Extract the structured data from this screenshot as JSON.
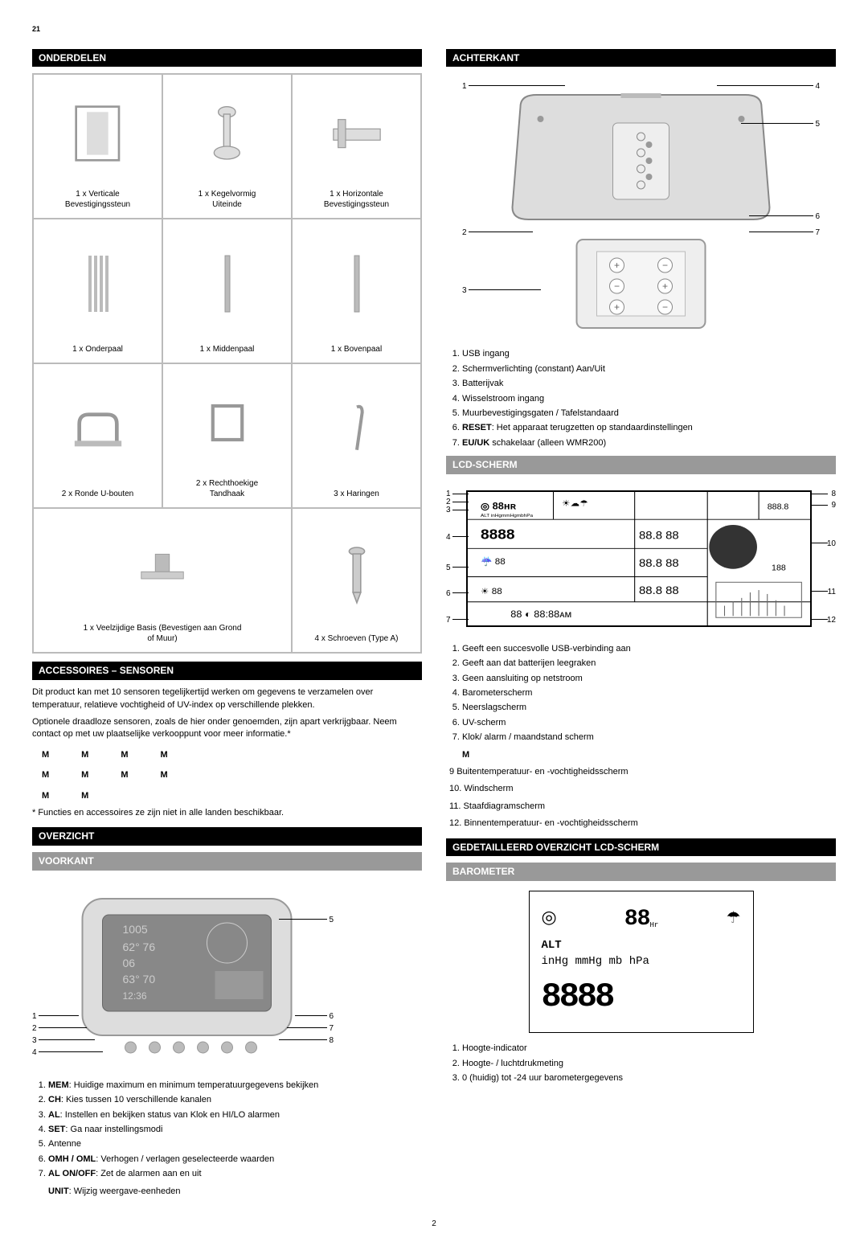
{
  "pageNumTop": "21",
  "pageNumBottom": "2",
  "leftCol": {
    "onderdelenHeader": "ONDERDELEN",
    "parts": [
      {
        "label": "1 x Verticale\nBevestigingssteun"
      },
      {
        "label": "1 x Kegelvormig\nUiteinde"
      },
      {
        "label": "1 x Horizontale\nBevestigingssteun"
      },
      {
        "label": "1 x Onderpaal"
      },
      {
        "label": "1 x Middenpaal"
      },
      {
        "label": "1 x Bovenpaal"
      },
      {
        "label": "2 x Ronde U-bouten"
      },
      {
        "label": "2 x Rechthoekige\nTandhaak"
      },
      {
        "label": "3 x Haringen"
      },
      {
        "label": "1 x Veelzijdige Basis (Bevestigen aan Grond\nof Muur)",
        "wide": true
      },
      {
        "label": "4 x Schroeven (Type A)"
      }
    ],
    "accessoiresHeader": "ACCESSOIRES – SENSOREN",
    "accText1": "Dit product kan met 10 sensoren tegelijkertijd werken om gegevens te verzamelen over temperatuur, relatieve vochtigheid of UV-index op verschillende plekken.",
    "accText2": "Optionele draadloze sensoren, zoals de hier onder genoemden, zijn apart verkrijgbaar. Neem contact op met uw plaatselijke verkooppunt voor meer informatie.*",
    "sensors": [
      "M",
      "M",
      "M",
      "M",
      "M",
      "M",
      "M",
      "M",
      "M",
      "M"
    ],
    "accFootnote": "* Functies en accessoires ze zijn niet in alle landen beschikbaar.",
    "overzichtHeader": "OVERZICHT",
    "voorkantHeader": "VOORKANT",
    "voorkantLabels": {
      "l1": "1",
      "l2": "2",
      "l3": "3",
      "l4": "4",
      "r5": "5",
      "r6": "6",
      "r7": "7",
      "r8": "8"
    },
    "voorkantItems": [
      {
        "b": "MEM",
        "t": ": Huidige maximum en minimum temperatuurgegevens bekijken"
      },
      {
        "b": "CH",
        "t": ": Kies tussen 10 verschillende kanalen"
      },
      {
        "b": "AL",
        "t": ": Instellen en bekijken status van Klok en HI/LO alarmen"
      },
      {
        "b": "SET",
        "t": ": Ga naar instellingsmodi"
      },
      {
        "b": "",
        "t": "Antenne"
      },
      {
        "b": "OMH / OML",
        "t": ": Verhogen / verlagen geselecteerde waarden"
      },
      {
        "b": "AL ON/OFF",
        "t": ": Zet de alarmen aan en uit"
      }
    ],
    "unitLine": {
      "b": "UNIT",
      "t": ": Wijzig weergave-eenheden"
    }
  },
  "rightCol": {
    "achterkantHeader": "ACHTERKANT",
    "achterkantLabels": {
      "l1": "1",
      "l2": "2",
      "l3": "3",
      "r4": "4",
      "r5": "5",
      "r6": "6",
      "r7": "7"
    },
    "achterkantItems": [
      {
        "b": "",
        "t": "USB ingang"
      },
      {
        "b": "",
        "t": "Schermverlichting (constant) Aan/Uit"
      },
      {
        "b": "",
        "t": "Batterijvak"
      },
      {
        "b": "",
        "t": "Wisselstroom ingang"
      },
      {
        "b": "",
        "t": "Muurbevestigingsgaten / Tafelstandaard"
      },
      {
        "b": "RESET",
        "t": ": Het apparaat terugzetten op standaardinstellingen"
      },
      {
        "b": "EU/UK",
        "t": " schakelaar (alleen WMR200)"
      }
    ],
    "lcdSchermHeader": "LCD-SCHERM",
    "lcdLabels": {
      "l1": "1",
      "l2": "2",
      "l3": "3",
      "l4": "4",
      "l5": "5",
      "l6": "6",
      "l7": "7",
      "r8": "8",
      "r9": "9",
      "r10": "10",
      "r11": "11",
      "r12": "12"
    },
    "lcdItems": [
      "Geeft een succesvolle USB-verbinding aan",
      "Geeft aan dat batterijen leegraken",
      "Geen aansluiting op netstroom",
      "Barometerscherm",
      "Neerslagscherm",
      "UV-scherm",
      "Klok/ alarm / maandstand scherm"
    ],
    "lcdItemM": "M",
    "lcdItemsAfter": [
      {
        "n": "9",
        "t": "Buitentemperatuur- en -vochtigheidsscherm"
      },
      {
        "n": "10.",
        "t": "Windscherm"
      },
      {
        "n": "11.",
        "t": "Staafdiagramscherm"
      },
      {
        "n": "12.",
        "t": "Binnentemperatuur- en -vochtigheidsscherm"
      }
    ],
    "gedetailHeader": "GEDETAILLEERD OVERZICHT LCD-SCHERM",
    "barometerHeader": "BAROMETER",
    "baro": {
      "topDigits": "88",
      "hr": "Hr",
      "alt": "ALT",
      "units": "inHg mmHg mb hPa",
      "big": "8888"
    },
    "barometerItems": [
      "Hoogte-indicator",
      "Hoogte- / luchtdrukmeting",
      "0 (huidig) tot -24 uur barometergegevens"
    ]
  },
  "colors": {
    "headerBg": "#000000",
    "subHeaderBg": "#999999",
    "border": "#bbbbbb"
  }
}
